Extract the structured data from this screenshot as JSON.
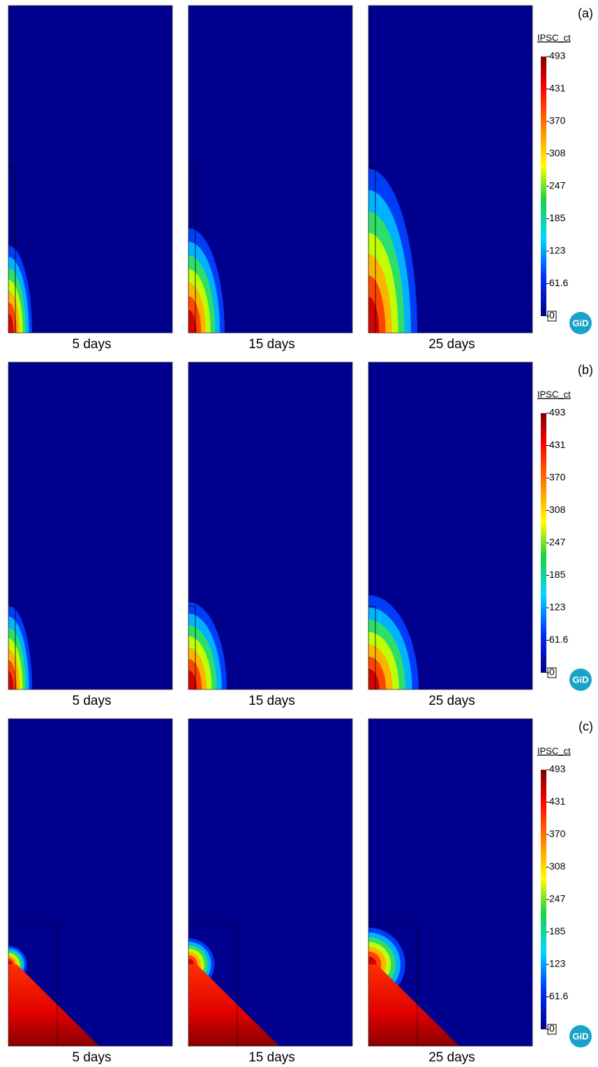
{
  "rows": [
    {
      "label": "(a)",
      "captions": [
        "5 days",
        "15 days",
        "25 days"
      ],
      "colorbar": {
        "title": "IPSC_ct",
        "ticks": [
          493,
          431,
          370,
          308,
          247,
          185,
          123,
          61.6,
          0
        ]
      },
      "logo": "GiD"
    },
    {
      "label": "(b)",
      "captions": [
        "5 days",
        "15 days",
        "25 days"
      ],
      "colorbar": {
        "title": "IPSC_ct",
        "ticks": [
          493,
          431,
          370,
          308,
          247,
          185,
          123,
          61.6,
          0
        ]
      },
      "logo": "GiD"
    },
    {
      "label": "(c)",
      "captions": [
        "5 days",
        "15 days",
        "25 days"
      ],
      "colorbar": {
        "title": "IPSC_ct",
        "ticks": [
          493,
          431,
          370,
          308,
          247,
          185,
          123,
          61.6,
          0
        ]
      },
      "logo": "GiD"
    }
  ]
}
